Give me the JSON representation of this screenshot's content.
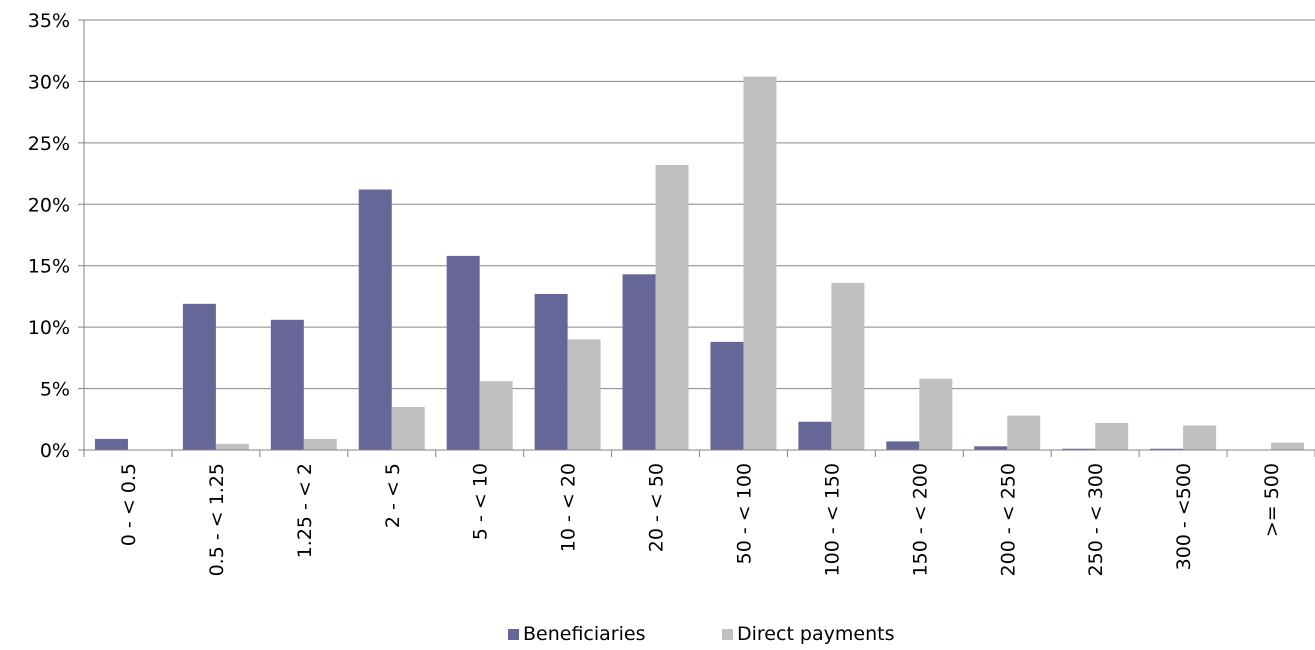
{
  "chart_data": {
    "type": "bar",
    "categories": [
      "0 - < 0.5",
      "0.5 - < 1.25",
      "1.25 - < 2",
      "2 - < 5",
      "5 - < 10",
      "10 - < 20",
      "20 - < 50",
      "50 - < 100",
      "100 - < 150",
      "150 - < 200",
      "200 - < 250",
      "250 - < 300",
      "300 - <500",
      ">= 500"
    ],
    "series": [
      {
        "name": "Beneficiaries",
        "color": "#666699",
        "values": [
          0.9,
          11.9,
          10.6,
          21.2,
          15.8,
          12.7,
          14.3,
          8.8,
          2.3,
          0.7,
          0.3,
          0.1,
          0.1,
          0.0
        ]
      },
      {
        "name": "Direct payments",
        "color": "#c0c0c0",
        "values": [
          0.0,
          0.5,
          0.9,
          3.5,
          5.6,
          9.0,
          23.2,
          30.4,
          13.6,
          5.8,
          2.8,
          2.2,
          2.0,
          0.6
        ]
      }
    ],
    "y_ticks": [
      "0%",
      "5%",
      "10%",
      "15%",
      "20%",
      "25%",
      "30%",
      "35%"
    ],
    "ylim": [
      0,
      35
    ],
    "title": "",
    "xlabel": "",
    "ylabel": "",
    "grid": true,
    "legend_position": "bottom"
  }
}
